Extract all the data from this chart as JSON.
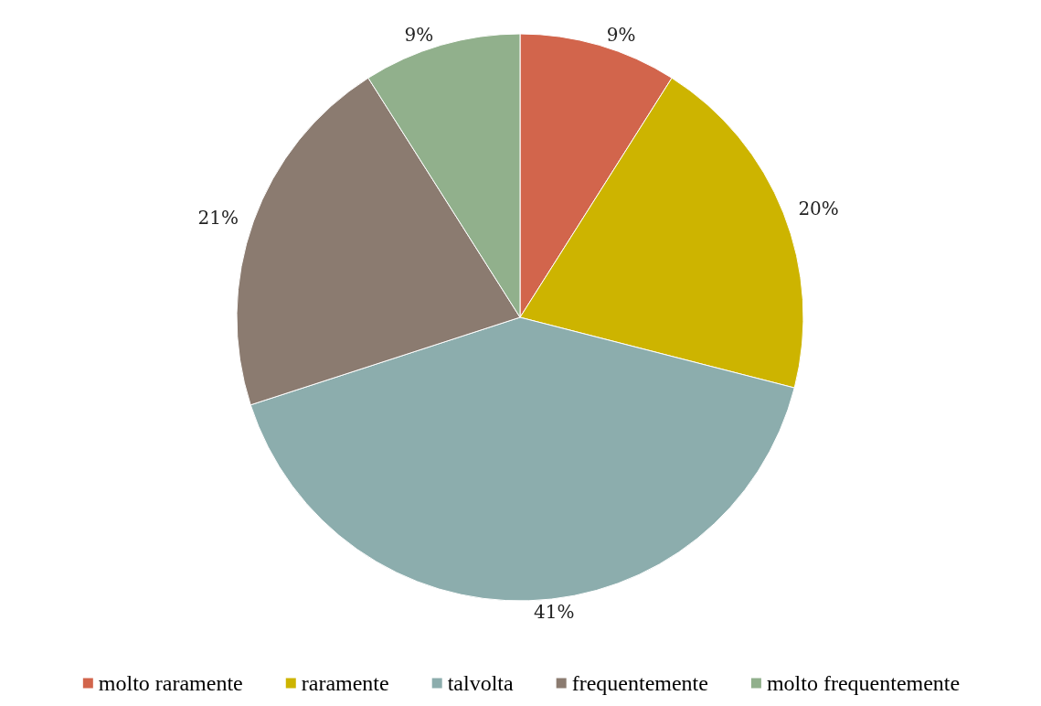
{
  "chart_data": {
    "type": "pie",
    "categories": [
      "molto raramente",
      "raramente",
      "talvolta",
      "frequentemente",
      "molto frequentemente"
    ],
    "values": [
      9,
      20,
      41,
      21,
      9
    ],
    "value_labels": [
      "9%",
      "20%",
      "41%",
      "21%",
      "9%"
    ],
    "colors": [
      "#d2654c",
      "#cdb400",
      "#8cadad",
      "#8b7b70",
      "#91b08c"
    ],
    "legend": "bottom"
  }
}
